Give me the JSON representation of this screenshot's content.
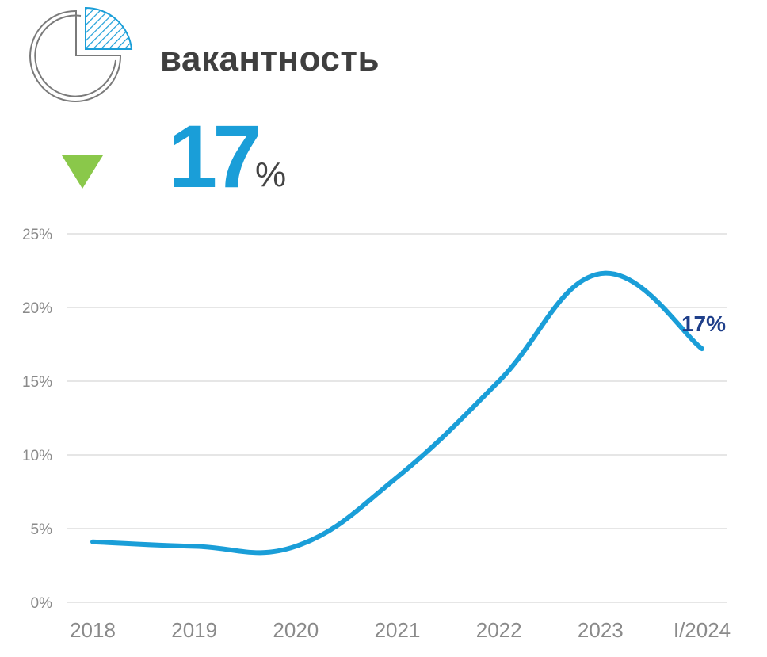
{
  "header": {
    "title": "вакантность",
    "icon": "pie-chart-icon"
  },
  "headline": {
    "value": "17",
    "unit": "%",
    "trend": "down",
    "trend_icon": "triangle-down-icon"
  },
  "colors": {
    "line": "#1a9ed8",
    "headline_value": "#1a9ed8",
    "trend_down": "#8ac84a",
    "last_label": "#1f3f8a",
    "grid": "#dddddd",
    "title": "#3f3f3f",
    "axis_text": "#8a8a8a"
  },
  "chart_data": {
    "type": "line",
    "title": "",
    "xlabel": "",
    "ylabel": "",
    "ylim": [
      0,
      25
    ],
    "y_ticks": [
      "0%",
      "5%",
      "10%",
      "15%",
      "20%",
      "25%"
    ],
    "y_tick_values": [
      0,
      5,
      10,
      15,
      20,
      25
    ],
    "categories": [
      "2018",
      "2019",
      "2020",
      "2021",
      "2022",
      "2023",
      "I/2024"
    ],
    "grid": true,
    "legend": "none",
    "series": [
      {
        "values": [
          4.1,
          3.8,
          3.8,
          8.5,
          15.0,
          22.3,
          17.2
        ]
      }
    ],
    "annotations": [
      {
        "category": "I/2024",
        "text": "17%"
      }
    ]
  }
}
